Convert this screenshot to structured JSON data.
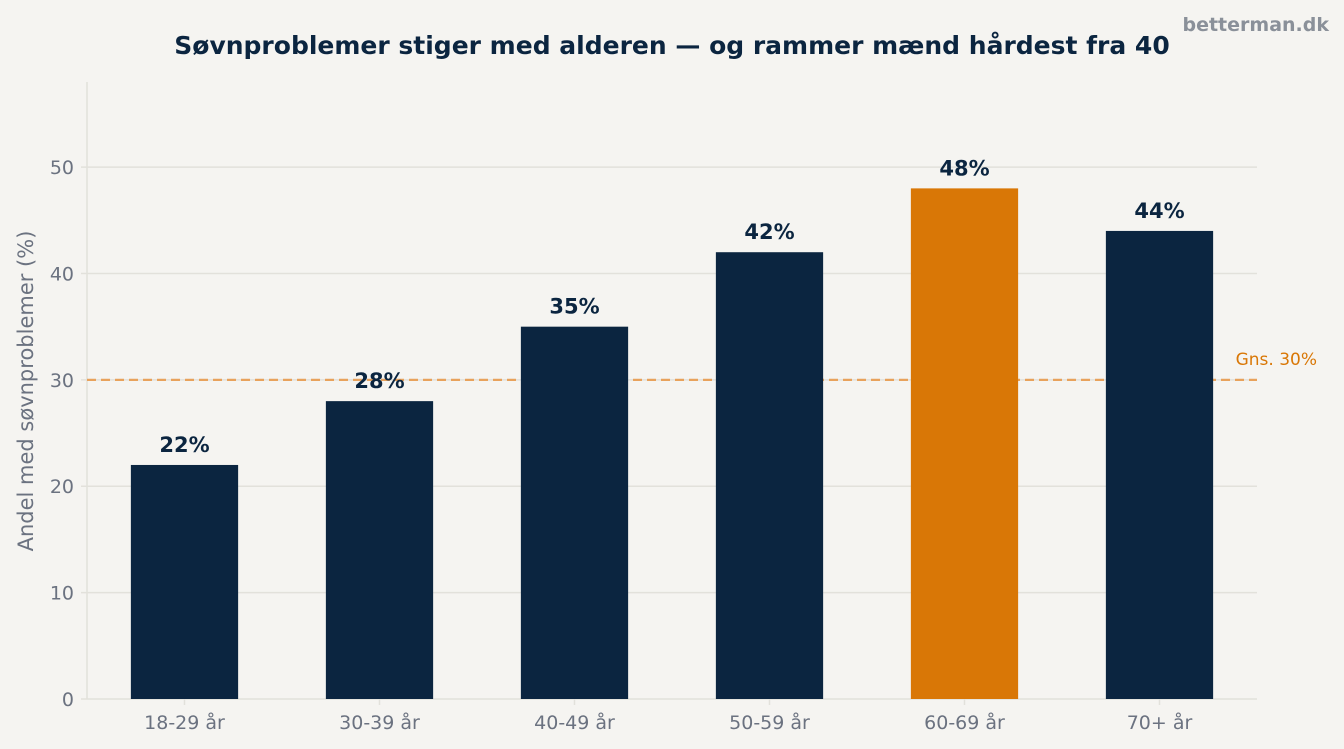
{
  "chart_data": {
    "type": "bar",
    "title": "Søvnproblemer stiger med alderen — og rammer mænd hårdest fra 40",
    "watermark": "betterman.dk",
    "xlabel": "",
    "ylabel": "Andel med søvnproblemer (%)",
    "categories": [
      "18-29 år",
      "30-39 år",
      "40-49 år",
      "50-59 år",
      "60-69 år",
      "70+ år"
    ],
    "values": [
      22,
      28,
      35,
      42,
      48,
      44
    ],
    "value_labels": [
      "22%",
      "28%",
      "35%",
      "42%",
      "48%",
      "44%"
    ],
    "highlight_index": 4,
    "ylim": [
      0,
      58
    ],
    "yticks": [
      0,
      10,
      20,
      30,
      40,
      50
    ],
    "grid": true,
    "reference_line": {
      "value": 30,
      "label": "Gns. 30%"
    },
    "colors": {
      "bar": "#0b2540",
      "highlight": "#d97706",
      "reference": "#e8a25c",
      "reference_text": "#d97706",
      "title": "#0b2540",
      "watermark": "#8a9099",
      "tick_text": "#6b7280",
      "grid": "#e2e1db",
      "background": "#f5f4f1"
    }
  }
}
